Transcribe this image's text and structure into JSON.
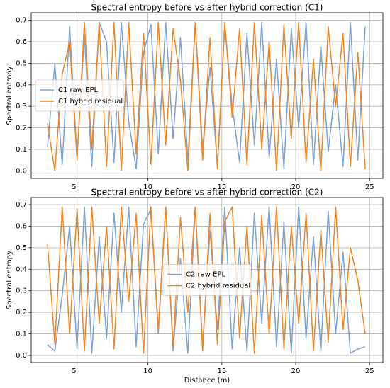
{
  "chart_data": [
    {
      "type": "line",
      "title": "Spectral entropy before vs after hybrid correction (C1)",
      "ylabel": "Spectral entropy",
      "x": [
        3.2,
        3.7,
        4.2,
        4.7,
        5.2,
        5.7,
        6.2,
        6.7,
        7.2,
        7.7,
        8.2,
        8.7,
        9.2,
        9.7,
        10.2,
        10.7,
        11.2,
        11.7,
        12.2,
        12.7,
        13.2,
        13.7,
        14.2,
        14.7,
        15.2,
        15.7,
        16.2,
        16.7,
        17.2,
        17.7,
        18.2,
        18.7,
        19.2,
        19.7,
        20.2,
        20.7,
        21.2,
        21.7,
        22.2,
        22.7,
        23.2,
        23.7,
        24.2,
        24.7
      ],
      "series": [
        {
          "name": "C1 raw EPL",
          "color": "#7ea2d6",
          "values": [
            0.11,
            0.5,
            0.03,
            0.67,
            0.06,
            0.63,
            0.02,
            0.69,
            0.6,
            0.04,
            0.69,
            0.23,
            0.01,
            0.55,
            0.68,
            0.08,
            0.69,
            0.15,
            0.62,
            0.05,
            0.69,
            0.1,
            0.48,
            0.02,
            0.68,
            0.3,
            0.04,
            0.64,
            0.12,
            0.69,
            0.06,
            0.52,
            0.01,
            0.66,
            0.2,
            0.69,
            0.03,
            0.58,
            0.09,
            0.4,
            0.02,
            0.69,
            0.05,
            0.67
          ]
        },
        {
          "name": "C1 hybrid residual",
          "color": "#f28522",
          "values": [
            0.22,
            0.0,
            0.45,
            0.6,
            0.05,
            0.69,
            0.1,
            0.68,
            0.02,
            0.69,
            0.0,
            0.69,
            0.08,
            0.64,
            0.03,
            0.69,
            0.12,
            0.66,
            0.42,
            0.0,
            0.69,
            0.05,
            0.62,
            0.01,
            0.69,
            0.25,
            0.66,
            0.03,
            0.69,
            0.1,
            0.6,
            0.0,
            0.68,
            0.15,
            0.69,
            0.04,
            0.52,
            0.0,
            0.67,
            0.3,
            0.64,
            0.02,
            0.55,
            0.01
          ]
        }
      ],
      "xlim": [
        2.1,
        25.9
      ],
      "ylim": [
        -0.035,
        0.735
      ],
      "xticks": [
        5,
        10,
        15,
        20,
        25
      ],
      "yticks": [
        {
          "value": 0,
          "label": "0.0"
        },
        0.1,
        0.2,
        0.3,
        0.4,
        0.5,
        0.6,
        0.7
      ],
      "grid": true,
      "legend": "center left"
    },
    {
      "type": "line",
      "title": "Spectral entropy before vs after hybrid correction (C2)",
      "ylabel": "Spectral entropy",
      "xlabel": "Distance (m)",
      "x": [
        3.2,
        3.7,
        4.2,
        4.7,
        5.2,
        5.7,
        6.2,
        6.7,
        7.2,
        7.7,
        8.2,
        8.7,
        9.2,
        9.7,
        10.2,
        10.7,
        11.2,
        11.7,
        12.2,
        12.7,
        13.2,
        13.7,
        14.2,
        14.7,
        15.2,
        15.7,
        16.2,
        16.7,
        17.2,
        17.7,
        18.2,
        18.7,
        19.2,
        19.7,
        20.2,
        20.7,
        21.2,
        21.7,
        22.2,
        22.7,
        23.2,
        23.7,
        24.2,
        24.7
      ],
      "series": [
        {
          "name": "C2 raw EPL",
          "color": "#7ea2d6",
          "values": [
            0.05,
            0.02,
            0.28,
            0.6,
            0.03,
            0.69,
            0.01,
            0.55,
            0.08,
            0.66,
            0.2,
            0.69,
            0.04,
            0.61,
            0.68,
            0.1,
            0.69,
            0.02,
            0.45,
            0.01,
            0.69,
            0.05,
            0.58,
            0.12,
            0.69,
            0.03,
            0.5,
            0.02,
            0.66,
            0.15,
            0.69,
            0.04,
            0.62,
            0.01,
            0.69,
            0.08,
            0.55,
            0.02,
            0.67,
            0.1,
            0.48,
            0.01,
            0.03,
            0.04
          ]
        },
        {
          "name": "C2 hybrid residual",
          "color": "#f28522",
          "values": [
            0.52,
            0.05,
            0.69,
            0.1,
            0.68,
            0.02,
            0.69,
            0.15,
            0.6,
            0.03,
            0.69,
            0.25,
            0.66,
            0.01,
            0.69,
            0.12,
            0.69,
            0.04,
            0.64,
            0.2,
            0.69,
            0.02,
            0.66,
            0.05,
            0.62,
            0.69,
            0.08,
            0.6,
            0.01,
            0.65,
            0.1,
            0.69,
            0.03,
            0.6,
            0.15,
            0.66,
            0.02,
            0.58,
            0.06,
            0.69,
            0.12,
            0.5,
            0.35,
            0.1
          ]
        }
      ],
      "xlim": [
        2.1,
        25.9
      ],
      "ylim": [
        -0.033,
        0.733
      ],
      "xticks": [
        5,
        10,
        15,
        20,
        25
      ],
      "yticks": [
        {
          "value": 0,
          "label": "0.0"
        },
        0.1,
        0.2,
        0.3,
        0.4,
        0.5,
        0.6,
        0.7
      ],
      "grid": true,
      "legend": "center"
    }
  ]
}
